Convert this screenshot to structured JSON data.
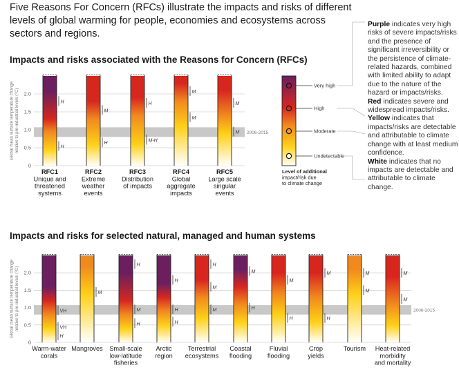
{
  "page_title": "Five Reasons For Concern (RFCs) illustrate the impacts and risks of different levels of global warming for people, economies and ecosystems across sectors and regions.",
  "section1_title": "Impacts and risks associated with the Reasons for Concern (RFCs)",
  "section2_title": "Impacts and risks for selected natural, managed and human systems",
  "legend": {
    "key_levels": [
      "Very high",
      "High",
      "Moderate",
      "Undetectable"
    ],
    "key_caption": [
      "Level of additional",
      "impact/risk due",
      "to climate change"
    ],
    "purple_word": "Purple",
    "purple_text": "indicates very high risks of severe impacts/risks and the presence of significant irreversibility or the persistence of climate-related hazards, combined with limited ability to adapt due to the nature of the hazard or impacts/risks.",
    "red_word": "Red",
    "red_text": "indicates severe and widespread impacts/risks.",
    "yellow_word": "Yellow",
    "yellow_text": "indicates that impacts/risks are detectable and attributable to climate change with at least medium confidence.",
    "white_word": "White",
    "white_text": "indicates that no impacts are detectable and attributable to climate change."
  },
  "colors": {
    "purple": "#6b1f5e",
    "red": "#d7261e",
    "orange": "#f08a1c",
    "yellow": "#fdd017",
    "white": "#ffffff",
    "band": "#c8c8c8",
    "grid": "#bbbbbb"
  },
  "chart_data": [
    {
      "type": "stacked-gradient-bar",
      "title": "Impacts and risks associated with the Reasons for Concern (RFCs)",
      "ylabel": "Global mean surface temperature change relative to pre-industrial levels (°C)",
      "ylim": [
        0,
        2.5
      ],
      "yticks": [
        "0",
        "0.5",
        "1.0",
        "1.5",
        "2.0"
      ],
      "band_label": "2006-2015",
      "band_range": [
        0.8,
        1.07
      ],
      "categories": [
        {
          "label": [
            "RFC1",
            "Unique and",
            "threatened",
            "systems"
          ],
          "stops": [
            [
              0,
              "white"
            ],
            [
              0.45,
              "yellow"
            ],
            [
              0.95,
              "orange"
            ],
            [
              1.3,
              "red"
            ],
            [
              2.1,
              "purple"
            ],
            [
              2.5,
              "purple"
            ]
          ],
          "confidence": [
            {
              "y": 1.8,
              "label": "H"
            },
            {
              "y": 0.55,
              "label": "H"
            }
          ]
        },
        {
          "label": [
            "RFC2",
            "Extreme",
            "weather",
            "events"
          ],
          "stops": [
            [
              0,
              "white"
            ],
            [
              0.6,
              "yellow"
            ],
            [
              1.3,
              "orange"
            ],
            [
              1.8,
              "red"
            ],
            [
              2.5,
              "red"
            ]
          ],
          "confidence": [
            {
              "y": 1.55,
              "label": "M"
            },
            {
              "y": 0.65,
              "label": "H"
            }
          ]
        },
        {
          "label": [
            "RFC3",
            "Distribution",
            "of impacts"
          ],
          "stops": [
            [
              0,
              "white"
            ],
            [
              0.6,
              "yellow"
            ],
            [
              1.4,
              "orange"
            ],
            [
              1.9,
              "red"
            ],
            [
              2.5,
              "red"
            ]
          ],
          "confidence": [
            {
              "y": 1.75,
              "label": "H"
            },
            {
              "y": 0.72,
              "label": "M-H"
            }
          ]
        },
        {
          "label": [
            "RFC4",
            "Global",
            "aggregate",
            "impacts"
          ],
          "stops": [
            [
              0,
              "white"
            ],
            [
              1.1,
              "yellow"
            ],
            [
              1.8,
              "orange"
            ],
            [
              2.3,
              "red"
            ],
            [
              2.5,
              "red"
            ]
          ],
          "confidence": [
            {
              "y": 2.08,
              "label": "M"
            },
            {
              "y": 1.35,
              "label": "M"
            }
          ]
        },
        {
          "label": [
            "RFC5",
            "Large scale",
            "singular",
            "events"
          ],
          "stops": [
            [
              0,
              "white"
            ],
            [
              0.9,
              "yellow"
            ],
            [
              1.4,
              "orange"
            ],
            [
              2.1,
              "red"
            ],
            [
              2.5,
              "red"
            ]
          ],
          "confidence": [
            {
              "y": 1.75,
              "label": "M"
            },
            {
              "y": 0.95,
              "label": "M"
            }
          ]
        }
      ]
    },
    {
      "type": "stacked-gradient-bar",
      "title": "Impacts and risks for selected natural, managed and human systems",
      "ylabel": "Global mean surface temperature change relative to pre-industrial levels (°C)",
      "ylim": [
        0,
        2.5
      ],
      "yticks": [
        "0",
        "0.5",
        "1.0",
        "1.5",
        "2.0"
      ],
      "band_label": "2006-2015",
      "band_range": [
        0.8,
        1.07
      ],
      "categories": [
        {
          "label": [
            "Warm-water",
            "corals"
          ],
          "stops": [
            [
              0,
              "white"
            ],
            [
              0.4,
              "yellow"
            ],
            [
              0.8,
              "orange"
            ],
            [
              1.2,
              "red"
            ],
            [
              1.6,
              "purple"
            ],
            [
              2.5,
              "purple"
            ]
          ],
          "confidence": [
            {
              "y": 0.92,
              "label": "VH"
            },
            {
              "y": 0.45,
              "label": "VH"
            },
            {
              "y": 0.2,
              "label": "H"
            }
          ]
        },
        {
          "label": [
            "Mangroves"
          ],
          "stops": [
            [
              0,
              "white"
            ],
            [
              1.4,
              "yellow"
            ],
            [
              2.2,
              "orange"
            ],
            [
              2.5,
              "orange"
            ]
          ],
          "confidence": [
            {
              "y": 1.45,
              "label": "M"
            }
          ]
        },
        {
          "label": [
            "Small-scale",
            "low-latitude",
            "fisheries"
          ],
          "stops": [
            [
              0,
              "white"
            ],
            [
              0.4,
              "yellow"
            ],
            [
              0.8,
              "orange"
            ],
            [
              1.2,
              "red"
            ],
            [
              2.0,
              "purple"
            ],
            [
              2.5,
              "purple"
            ]
          ],
          "confidence": [
            {
              "y": 2.25,
              "label": "H"
            },
            {
              "y": 0.95,
              "label": "M"
            },
            {
              "y": 0.55,
              "label": "H"
            }
          ]
        },
        {
          "label": [
            "Arctic",
            "region"
          ],
          "stops": [
            [
              0,
              "white"
            ],
            [
              0.5,
              "yellow"
            ],
            [
              0.9,
              "orange"
            ],
            [
              1.3,
              "red"
            ],
            [
              1.7,
              "purple"
            ],
            [
              2.5,
              "purple"
            ]
          ],
          "confidence": [
            {
              "y": 1.8,
              "label": "H"
            },
            {
              "y": 0.95,
              "label": "H"
            },
            {
              "y": 0.6,
              "label": "H"
            }
          ]
        },
        {
          "label": [
            "Terrestrial",
            "ecosystems"
          ],
          "stops": [
            [
              0,
              "white"
            ],
            [
              0.7,
              "yellow"
            ],
            [
              1.3,
              "orange"
            ],
            [
              1.8,
              "red"
            ],
            [
              2.5,
              "red"
            ]
          ],
          "confidence": [
            {
              "y": 2.25,
              "label": "H"
            },
            {
              "y": 1.6,
              "label": "M"
            },
            {
              "y": 0.95,
              "label": "M"
            }
          ]
        },
        {
          "label": [
            "Coastal",
            "flooding"
          ],
          "stops": [
            [
              0,
              "white"
            ],
            [
              0.6,
              "yellow"
            ],
            [
              1.1,
              "orange"
            ],
            [
              1.6,
              "red"
            ],
            [
              2.1,
              "purple"
            ],
            [
              2.5,
              "purple"
            ]
          ],
          "confidence": [
            {
              "y": 2.05,
              "label": "M"
            },
            {
              "y": 1.0,
              "label": "H"
            }
          ]
        },
        {
          "label": [
            "Fluvial",
            "flooding"
          ],
          "stops": [
            [
              0,
              "white"
            ],
            [
              0.8,
              "yellow"
            ],
            [
              1.4,
              "orange"
            ],
            [
              2.0,
              "red"
            ],
            [
              2.5,
              "red"
            ]
          ],
          "confidence": [
            {
              "y": 1.8,
              "label": "M"
            },
            {
              "y": 0.7,
              "label": "H"
            }
          ]
        },
        {
          "label": [
            "Crop",
            "yields"
          ],
          "stops": [
            [
              0,
              "white"
            ],
            [
              0.6,
              "yellow"
            ],
            [
              1.3,
              "orange"
            ],
            [
              2.0,
              "red"
            ],
            [
              2.5,
              "red"
            ]
          ],
          "confidence": [
            {
              "y": 2.0,
              "label": "M"
            },
            {
              "y": 0.7,
              "label": "H"
            }
          ]
        },
        {
          "label": [
            "Tourism"
          ],
          "stops": [
            [
              0,
              "white"
            ],
            [
              1.4,
              "yellow"
            ],
            [
              2.1,
              "orange"
            ],
            [
              2.5,
              "orange"
            ]
          ],
          "confidence": [
            {
              "y": 2.0,
              "label": "M"
            },
            {
              "y": 1.5,
              "label": "M"
            }
          ]
        },
        {
          "label": [
            "Heat-related",
            "morbidity",
            "and mortality"
          ],
          "stops": [
            [
              0,
              "white"
            ],
            [
              0.5,
              "yellow"
            ],
            [
              1.1,
              "orange"
            ],
            [
              1.9,
              "red"
            ],
            [
              2.5,
              "red"
            ]
          ],
          "confidence": [
            {
              "y": 2.0,
              "label": "M"
            },
            {
              "y": 1.25,
              "label": "M"
            }
          ]
        }
      ]
    }
  ]
}
